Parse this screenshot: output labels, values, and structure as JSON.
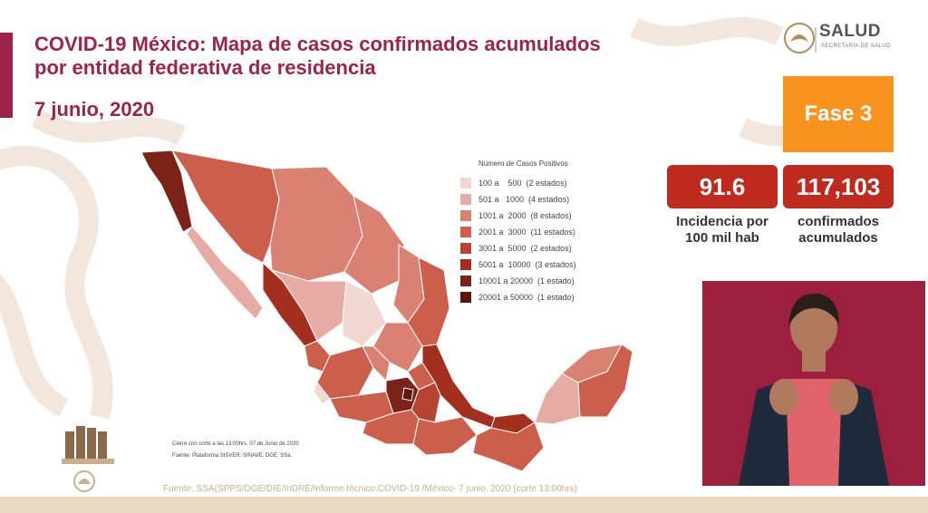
{
  "header": {
    "title_line1": "COVID-19 México: Mapa de casos confirmados acumulados",
    "title_line2": "por entidad federativa de residencia",
    "date": "7 junio, 2020"
  },
  "logo": {
    "text": "SALUD",
    "subtitle": "SECRETARÍA DE SALUD"
  },
  "phase": {
    "label": "Fase 3",
    "color": "#f7931e"
  },
  "kpis": [
    {
      "value": "91.6",
      "label_line1": "Incidencia por",
      "label_line2": "100 mil hab"
    },
    {
      "value": "117,103",
      "label_line1": "confirmados",
      "label_line2": "acumulados"
    }
  ],
  "legend": {
    "title": "Número de Casos Positivos",
    "items": [
      {
        "label": "100 a    500  (2 estados)",
        "color": "#f2d6d2"
      },
      {
        "label": "501 a   1000  (4 estados)",
        "color": "#e6aba2"
      },
      {
        "label": "1001 a  2000  (8 estados)",
        "color": "#d98273"
      },
      {
        "label": "2001 a  3000  (11 estados)",
        "color": "#cc5e4c"
      },
      {
        "label": "3001 a  5000  (2 estados)",
        "color": "#b94333"
      },
      {
        "label": "5001 a  10000  (3 estados)",
        "color": "#a3301f"
      },
      {
        "label": "10001 a 20000  (1 estado)",
        "color": "#7d2217"
      },
      {
        "label": "20001 a 50000  (1 estado)",
        "color": "#5c1710"
      }
    ]
  },
  "notes": {
    "cutoff": "Cierre con corte a las 13:00hrs. 07 de Junio de 2020",
    "platform": "Fuente: Plataforma SISVER, SINAVE, DGE, SSa."
  },
  "footer": {
    "source": "Fuente: SSA(SPPS/DGE/DIE/InDRE/Informe técnico.COVID-19 /México- 7 junio, 2020 (corte 13:00hrs)"
  }
}
